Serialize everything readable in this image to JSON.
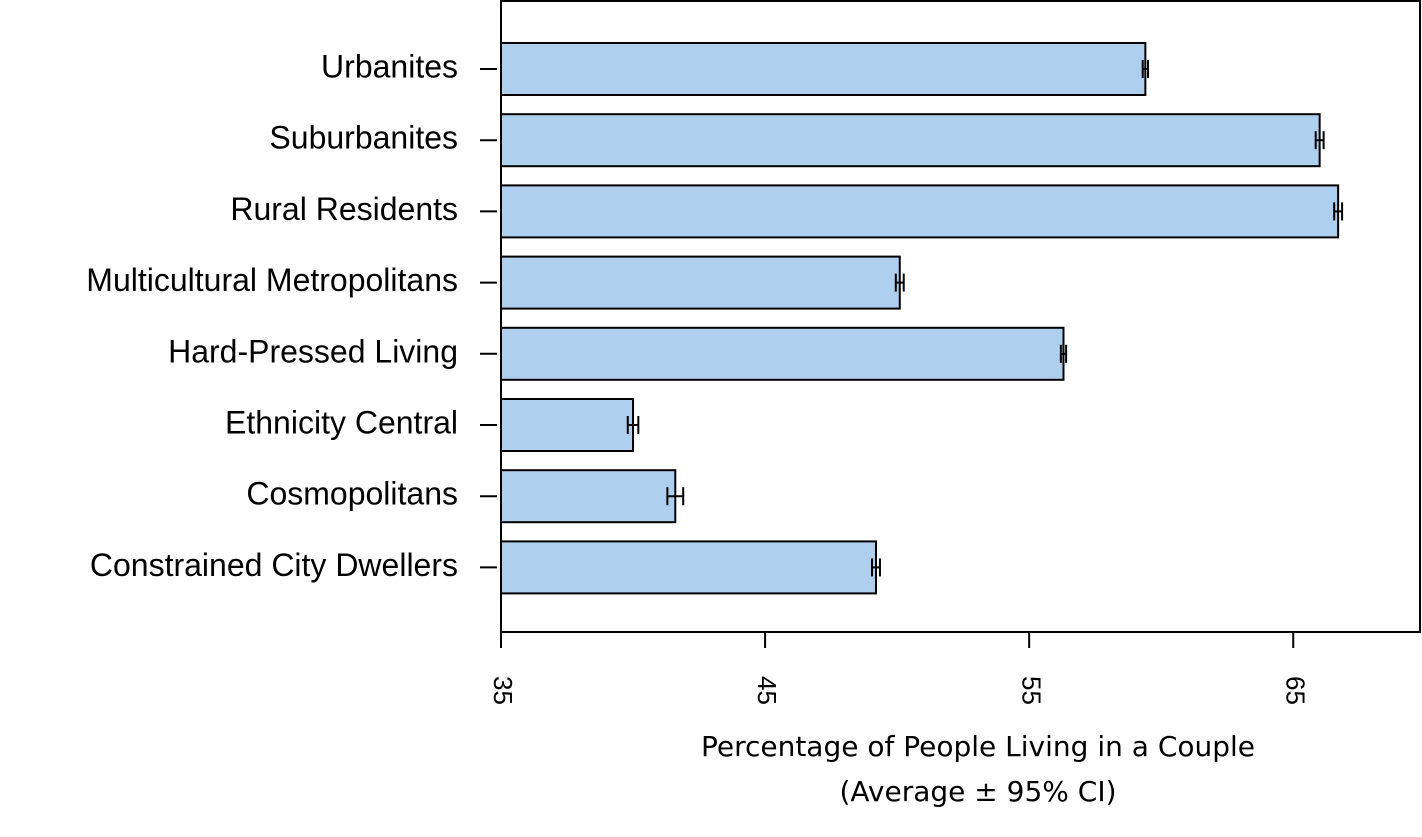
{
  "chart_data": {
    "type": "bar",
    "orientation": "horizontal",
    "xlabel": [
      "Percentage of People Living in a Couple",
      "(Average ± 95% CI)"
    ],
    "categories": [
      "Urbanites",
      "Suburbanites",
      "Rural Residents",
      "Multicultural Metropolitans",
      "Hard-Pressed Living",
      "Ethnicity Central",
      "Cosmopolitans",
      "Constrained City Dwellers"
    ],
    "values": [
      59.4,
      66.0,
      66.7,
      50.1,
      56.3,
      40.0,
      41.6,
      49.2
    ],
    "errors": [
      0.1,
      0.15,
      0.15,
      0.15,
      0.1,
      0.2,
      0.3,
      0.15
    ],
    "color": "#aecfee",
    "xlim": [
      35,
      69.8
    ],
    "xticks": [
      35,
      45,
      55,
      65
    ]
  }
}
